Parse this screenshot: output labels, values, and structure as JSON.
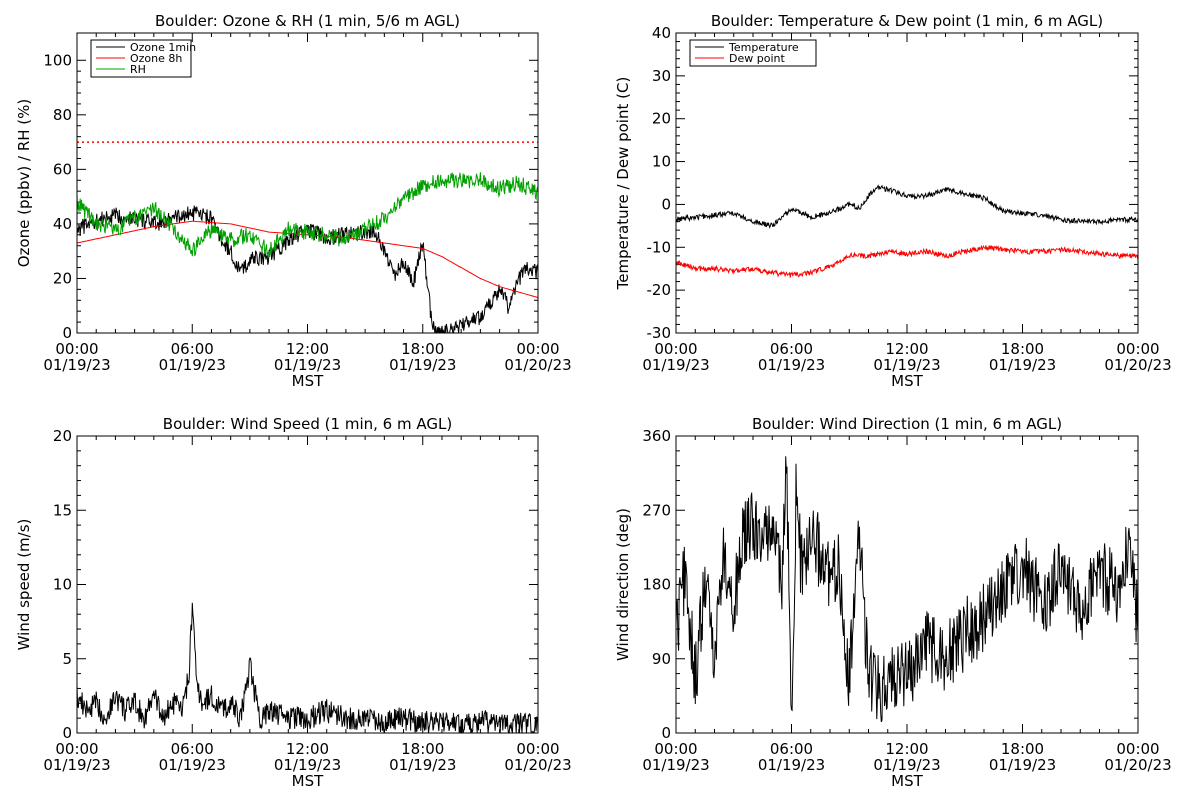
{
  "time_axis": {
    "unit_label": "MST",
    "ticks": [
      {
        "time": "00:00",
        "date": "01/19/23"
      },
      {
        "time": "06:00",
        "date": "01/19/23"
      },
      {
        "time": "12:00",
        "date": "01/19/23"
      },
      {
        "time": "18:00",
        "date": "01/19/23"
      },
      {
        "time": "00:00",
        "date": "01/20/23"
      }
    ]
  },
  "chart_data": [
    {
      "type": "line",
      "title": "Boulder: Ozone & RH (1 min, 5/6 m AGL)",
      "ylabel": "Ozone (ppbv) / RH (%)",
      "xlabel": "MST",
      "xlim": [
        "2023-01-19 00:00",
        "2023-01-20 00:00"
      ],
      "ylim": [
        0,
        110
      ],
      "yticks": [
        0,
        20,
        40,
        60,
        80,
        100
      ],
      "legend_position": "top-left",
      "reference_line": {
        "y": 70,
        "color": "#ff0000",
        "style": "dotted"
      },
      "series": [
        {
          "name": "Ozone 1min",
          "color": "#000000",
          "x": [
            "2023-01-19 00:00",
            "2023-01-19 01:00",
            "2023-01-19 02:00",
            "2023-01-19 03:00",
            "2023-01-19 04:00",
            "2023-01-19 05:00",
            "2023-01-19 06:00",
            "2023-01-19 07:00",
            "2023-01-19 07:30",
            "2023-01-19 08:00",
            "2023-01-19 08:30",
            "2023-01-19 09:00",
            "2023-01-19 10:00",
            "2023-01-19 11:00",
            "2023-01-19 12:00",
            "2023-01-19 13:00",
            "2023-01-19 14:00",
            "2023-01-19 15:00",
            "2023-01-19 15:30",
            "2023-01-19 16:00",
            "2023-01-19 16:30",
            "2023-01-19 17:00",
            "2023-01-19 17:30",
            "2023-01-19 18:00",
            "2023-01-19 18:30",
            "2023-01-19 19:00",
            "2023-01-19 19:30",
            "2023-01-19 20:00",
            "2023-01-19 21:00",
            "2023-01-19 22:00",
            "2023-01-19 22:30",
            "2023-01-19 23:00",
            "2023-01-19 23:30",
            "2023-01-20 00:00"
          ],
          "values": [
            38,
            41,
            43,
            42,
            40,
            42,
            44,
            42,
            34,
            30,
            22,
            27,
            28,
            34,
            38,
            35,
            36,
            37,
            38,
            30,
            21,
            27,
            18,
            33,
            2,
            0,
            1,
            3,
            6,
            16,
            9,
            20,
            24,
            22
          ]
        },
        {
          "name": "Ozone 8h",
          "color": "#ff0000",
          "x": [
            "2023-01-19 00:00",
            "2023-01-19 02:00",
            "2023-01-19 04:00",
            "2023-01-19 06:00",
            "2023-01-19 08:00",
            "2023-01-19 10:00",
            "2023-01-19 12:00",
            "2023-01-19 14:00",
            "2023-01-19 16:00",
            "2023-01-19 17:00",
            "2023-01-19 18:00",
            "2023-01-19 19:00",
            "2023-01-19 20:00",
            "2023-01-19 21:00",
            "2023-01-19 22:00",
            "2023-01-19 23:00",
            "2023-01-20 00:00"
          ],
          "values": [
            33,
            36,
            39,
            41,
            40,
            37,
            36,
            35,
            33,
            32,
            31,
            28,
            24,
            20,
            17,
            15,
            13
          ]
        },
        {
          "name": "RH",
          "color": "#00a000",
          "x": [
            "2023-01-19 00:00",
            "2023-01-19 00:30",
            "2023-01-19 01:00",
            "2023-01-19 02:00",
            "2023-01-19 03:00",
            "2023-01-19 04:00",
            "2023-01-19 05:00",
            "2023-01-19 06:00",
            "2023-01-19 07:00",
            "2023-01-19 08:00",
            "2023-01-19 09:00",
            "2023-01-19 10:00",
            "2023-01-19 11:00",
            "2023-01-19 12:00",
            "2023-01-19 13:00",
            "2023-01-19 14:00",
            "2023-01-19 15:00",
            "2023-01-19 16:00",
            "2023-01-19 17:00",
            "2023-01-19 18:00",
            "2023-01-19 19:00",
            "2023-01-19 20:00",
            "2023-01-19 21:00",
            "2023-01-19 22:00",
            "2023-01-19 23:00",
            "2023-01-20 00:00"
          ],
          "values": [
            48,
            44,
            40,
            38,
            42,
            46,
            38,
            30,
            38,
            34,
            36,
            30,
            38,
            37,
            36,
            34,
            38,
            42,
            49,
            54,
            56,
            56,
            56,
            53,
            55,
            51
          ]
        }
      ]
    },
    {
      "type": "line",
      "title": "Boulder: Temperature & Dew point (1 min, 6 m AGL)",
      "ylabel": "Temperature / Dew point (C)",
      "xlabel": "MST",
      "xlim": [
        "2023-01-19 00:00",
        "2023-01-20 00:00"
      ],
      "ylim": [
        -30,
        40
      ],
      "yticks": [
        -30,
        -20,
        -10,
        0,
        10,
        20,
        30,
        40
      ],
      "legend_position": "top-left",
      "series": [
        {
          "name": "Temperature",
          "color": "#000000",
          "x": [
            "2023-01-19 00:00",
            "2023-01-19 01:00",
            "2023-01-19 02:00",
            "2023-01-19 03:00",
            "2023-01-19 04:00",
            "2023-01-19 05:00",
            "2023-01-19 06:00",
            "2023-01-19 07:00",
            "2023-01-19 08:00",
            "2023-01-19 09:00",
            "2023-01-19 09:30",
            "2023-01-19 10:00",
            "2023-01-19 10:30",
            "2023-01-19 11:00",
            "2023-01-19 12:00",
            "2023-01-19 13:00",
            "2023-01-19 14:00",
            "2023-01-19 15:00",
            "2023-01-19 16:00",
            "2023-01-19 17:00",
            "2023-01-19 18:00",
            "2023-01-19 19:00",
            "2023-01-19 20:00",
            "2023-01-19 21:00",
            "2023-01-19 22:00",
            "2023-01-19 23:00",
            "2023-01-20 00:00"
          ],
          "values": [
            -3.5,
            -3,
            -2.5,
            -2,
            -4,
            -5,
            -1,
            -3,
            -2,
            0,
            -1,
            2,
            4,
            3.5,
            2,
            2,
            3.5,
            2.5,
            1.5,
            -1.5,
            -2,
            -2.5,
            -3.5,
            -4,
            -4,
            -3.5,
            -3.5
          ]
        },
        {
          "name": "Dew point",
          "color": "#ff0000",
          "x": [
            "2023-01-19 00:00",
            "2023-01-19 01:00",
            "2023-01-19 02:00",
            "2023-01-19 03:00",
            "2023-01-19 04:00",
            "2023-01-19 05:00",
            "2023-01-19 06:00",
            "2023-01-19 07:00",
            "2023-01-19 08:00",
            "2023-01-19 09:00",
            "2023-01-19 10:00",
            "2023-01-19 11:00",
            "2023-01-19 12:00",
            "2023-01-19 13:00",
            "2023-01-19 14:00",
            "2023-01-19 15:00",
            "2023-01-19 16:00",
            "2023-01-19 17:00",
            "2023-01-19 18:00",
            "2023-01-19 19:00",
            "2023-01-19 20:00",
            "2023-01-19 21:00",
            "2023-01-19 22:00",
            "2023-01-19 23:00",
            "2023-01-20 00:00"
          ],
          "values": [
            -13.5,
            -15,
            -15,
            -15.5,
            -15,
            -16,
            -16.5,
            -16,
            -14.5,
            -12,
            -12,
            -11,
            -11.5,
            -11,
            -12,
            -11,
            -10,
            -10.5,
            -11,
            -11,
            -10.5,
            -11,
            -11.5,
            -12,
            -12
          ]
        }
      ]
    },
    {
      "type": "line",
      "title": "Boulder: Wind Speed (1 min, 6 m AGL)",
      "ylabel": "Wind speed (m/s)",
      "xlabel": "MST",
      "xlim": [
        "2023-01-19 00:00",
        "2023-01-20 00:00"
      ],
      "ylim": [
        0,
        20
      ],
      "yticks": [
        0,
        5,
        10,
        15,
        20
      ],
      "series": [
        {
          "name": "",
          "color": "#000000",
          "x": [
            "2023-01-19 00:00",
            "2023-01-19 00:30",
            "2023-01-19 01:00",
            "2023-01-19 01:30",
            "2023-01-19 02:00",
            "2023-01-19 02:30",
            "2023-01-19 03:00",
            "2023-01-19 03:30",
            "2023-01-19 04:00",
            "2023-01-19 04:30",
            "2023-01-19 05:00",
            "2023-01-19 05:30",
            "2023-01-19 05:50",
            "2023-01-19 06:00",
            "2023-01-19 06:15",
            "2023-01-19 06:30",
            "2023-01-19 07:00",
            "2023-01-19 07:30",
            "2023-01-19 08:00",
            "2023-01-19 08:30",
            "2023-01-19 09:00",
            "2023-01-19 09:30",
            "2023-01-19 10:00",
            "2023-01-19 11:00",
            "2023-01-19 12:00",
            "2023-01-19 13:00",
            "2023-01-19 14:00",
            "2023-01-19 15:00",
            "2023-01-19 16:00",
            "2023-01-19 17:00",
            "2023-01-19 18:00",
            "2023-01-19 19:00",
            "2023-01-19 20:00",
            "2023-01-19 21:00",
            "2023-01-19 22:00",
            "2023-01-19 23:00",
            "2023-01-20 00:00"
          ],
          "values": [
            2.5,
            1.5,
            2,
            1,
            2.5,
            1.5,
            2,
            1,
            2.5,
            1,
            2,
            1.5,
            4,
            8.5,
            3,
            2,
            2.5,
            1.5,
            2,
            1,
            4.5,
            1,
            1.5,
            1,
            1,
            1.5,
            1,
            1,
            0.8,
            1,
            0.7,
            0.8,
            0.6,
            0.8,
            0.5,
            0.6,
            0.4
          ]
        }
      ]
    },
    {
      "type": "line",
      "title": "Boulder: Wind Direction (1 min, 6 m AGL)",
      "ylabel": "Wind direction (deg)",
      "xlabel": "MST",
      "xlim": [
        "2023-01-19 00:00",
        "2023-01-20 00:00"
      ],
      "ylim": [
        0,
        360
      ],
      "yticks": [
        0,
        90,
        180,
        270,
        360
      ],
      "series": [
        {
          "name": "",
          "color": "#000000",
          "x": [
            "2023-01-19 00:00",
            "2023-01-19 00:30",
            "2023-01-19 01:00",
            "2023-01-19 01:30",
            "2023-01-19 02:00",
            "2023-01-19 02:30",
            "2023-01-19 03:00",
            "2023-01-19 03:30",
            "2023-01-19 04:00",
            "2023-01-19 04:30",
            "2023-01-19 05:00",
            "2023-01-19 05:30",
            "2023-01-19 05:45",
            "2023-01-19 06:00",
            "2023-01-19 06:15",
            "2023-01-19 06:30",
            "2023-01-19 07:00",
            "2023-01-19 07:30",
            "2023-01-19 08:00",
            "2023-01-19 08:30",
            "2023-01-19 09:00",
            "2023-01-19 09:30",
            "2023-01-19 10:00",
            "2023-01-19 10:30",
            "2023-01-19 11:00",
            "2023-01-19 11:30",
            "2023-01-19 12:00",
            "2023-01-19 13:00",
            "2023-01-19 14:00",
            "2023-01-19 15:00",
            "2023-01-19 16:00",
            "2023-01-19 17:00",
            "2023-01-19 18:00",
            "2023-01-19 19:00",
            "2023-01-19 20:00",
            "2023-01-19 21:00",
            "2023-01-19 22:00",
            "2023-01-19 23:00",
            "2023-01-19 23:30",
            "2023-01-20 00:00"
          ],
          "values": [
            120,
            200,
            60,
            180,
            100,
            220,
            150,
            240,
            250,
            230,
            260,
            180,
            320,
            20,
            300,
            200,
            230,
            220,
            180,
            200,
            60,
            240,
            70,
            50,
            60,
            80,
            70,
            110,
            90,
            120,
            140,
            180,
            200,
            160,
            190,
            150,
            200,
            170,
            220,
            130
          ]
        }
      ]
    }
  ]
}
